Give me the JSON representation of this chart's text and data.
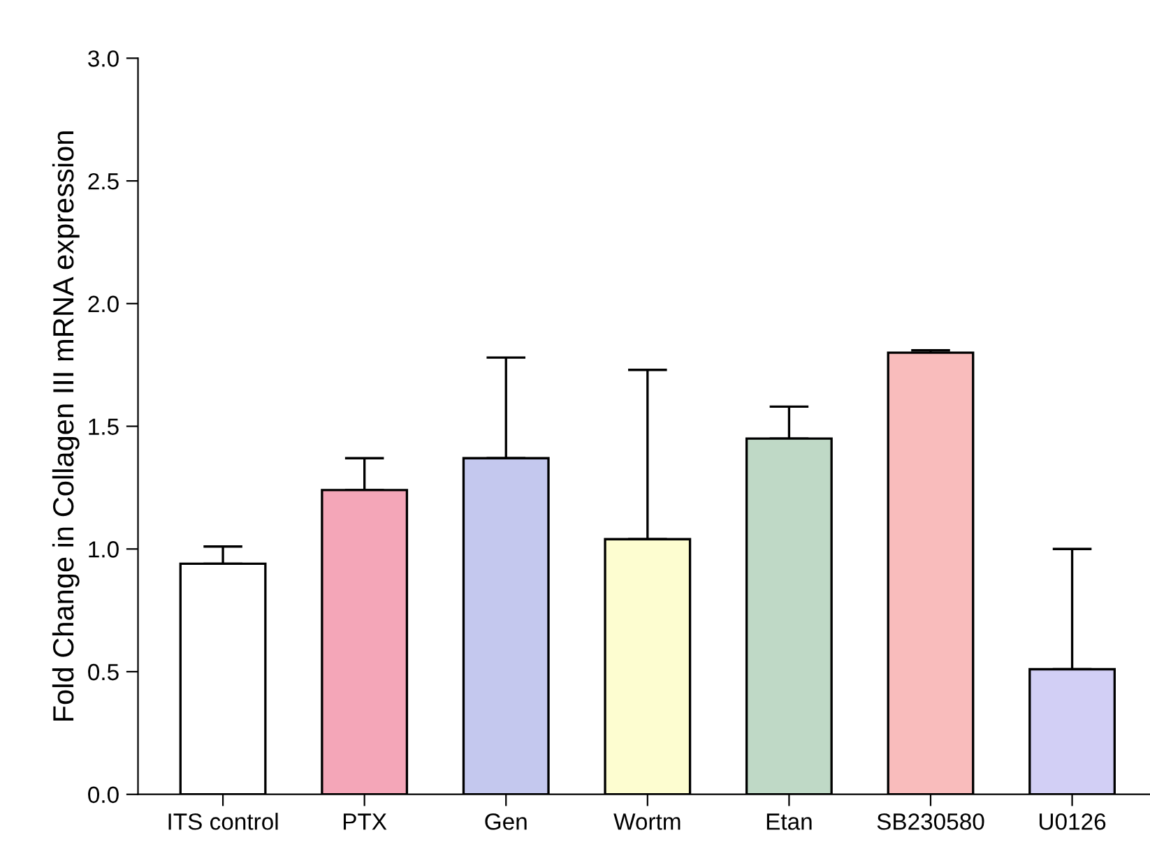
{
  "chart_data": {
    "type": "bar",
    "ylabel": "Fold Change in Collagen III mRNA expression",
    "categories": [
      "ITS control",
      "PTX",
      "Gen",
      "Wortm",
      "Etan",
      "SB230580",
      "U0126"
    ],
    "values": [
      0.94,
      1.24,
      1.37,
      1.04,
      1.45,
      1.8,
      0.51
    ],
    "colors": [
      "#ffffff",
      "#f4a6b8",
      "#c4c8ee",
      "#fdfdd0",
      "#bfd9c6",
      "#f9bcbc",
      "#d2cff5"
    ],
    "errors": [
      [
        0.94,
        1.01
      ],
      [
        1.24,
        1.37
      ],
      [
        1.37,
        1.78
      ],
      [
        1.04,
        1.73
      ],
      [
        1.45,
        1.58
      ],
      [
        1.8,
        1.81
      ],
      [
        0.51,
        1.0
      ]
    ],
    "ylim": [
      0,
      3
    ],
    "yticks": [
      {
        "value": 0,
        "label": "0.0"
      },
      {
        "value": 0.5,
        "label": "0.5"
      },
      {
        "value": 1,
        "label": "1.0"
      },
      {
        "value": 1.5,
        "label": "1.5"
      },
      {
        "value": 2,
        "label": "2.0"
      },
      {
        "value": 2.5,
        "label": "2.5"
      },
      {
        "value": 3,
        "label": "3.0"
      }
    ],
    "grid": false,
    "legend": false
  }
}
